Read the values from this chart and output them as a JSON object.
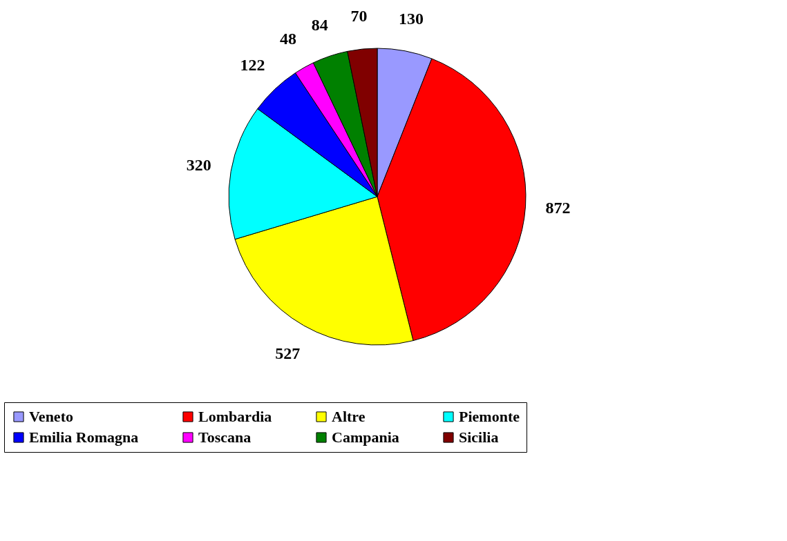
{
  "chart_data": {
    "type": "pie",
    "categories": [
      "Veneto",
      "Lombardia",
      "Altre",
      "Piemonte",
      "Emilia Romagna",
      "Toscana",
      "Campania",
      "Sicilia"
    ],
    "values": [
      130,
      872,
      527,
      320,
      122,
      48,
      84,
      70
    ],
    "colors": [
      "#9999ff",
      "#ff0000",
      "#ffff00",
      "#00ffff",
      "#0000ff",
      "#ff00ff",
      "#008000",
      "#800000"
    ],
    "data_labels": true,
    "legend": "bottom"
  }
}
